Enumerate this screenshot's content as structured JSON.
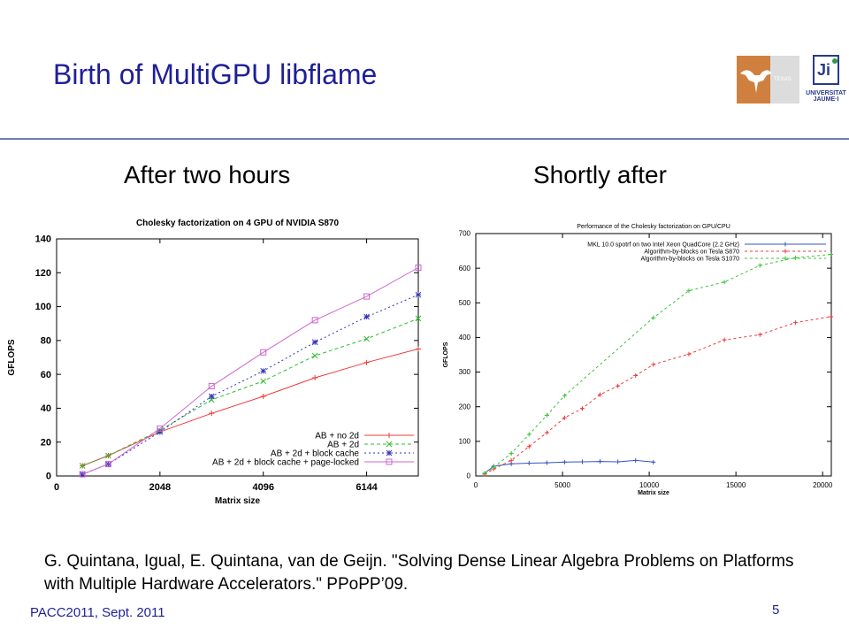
{
  "slide": {
    "title": "Birth of MultiGPU libflame",
    "left_heading": "After two hours",
    "right_heading": "Shortly after",
    "citation": "G. Quintana, Igual, E. Quintana, van de Geijn. \"Solving Dense Linear Algebra Problems on Platforms with Multiple Hardware Accelerators.\" PPoPP’09.",
    "footer": "PACC2011, Sept. 2011",
    "page_number": "5",
    "logos": {
      "left": "TEXAS",
      "right_line1": "UNIVERSITAT",
      "right_line2": "JAUME·I"
    }
  },
  "chart_data": [
    {
      "type": "line",
      "title": "Cholesky factorization on 4 GPU of NVIDIA S870",
      "xlabel": "Matrix size",
      "ylabel": "GFLOPS",
      "xlim": [
        0,
        7168
      ],
      "ylim": [
        0,
        140
      ],
      "xticks": [
        0,
        2048,
        4096,
        6144
      ],
      "yticks": [
        0,
        20,
        40,
        60,
        80,
        100,
        120,
        140
      ],
      "legend": "bottom-right",
      "series": [
        {
          "name": "AB + no 2d",
          "color": "#ee3b3b",
          "marker": "+",
          "dash": "",
          "x": [
            512,
            1024,
            2048,
            3072,
            4096,
            5120,
            6144,
            7168
          ],
          "y": [
            6,
            12,
            26,
            37,
            47,
            58,
            67,
            75
          ]
        },
        {
          "name": "AB + 2d",
          "color": "#2fbd2f",
          "marker": "x",
          "dash": "4,3",
          "x": [
            512,
            1024,
            2048,
            3072,
            4096,
            5120,
            6144,
            7168
          ],
          "y": [
            6,
            12,
            27,
            45,
            56,
            71,
            81,
            93
          ]
        },
        {
          "name": "AB + 2d + block cache",
          "color": "#3333bb",
          "marker": "*",
          "dash": "2,3",
          "x": [
            512,
            1024,
            2048,
            3072,
            4096,
            5120,
            6144,
            7168
          ],
          "y": [
            1,
            7,
            26,
            47,
            62,
            79,
            94,
            107
          ]
        },
        {
          "name": "AB + 2d + block cache + page-locked",
          "color": "#cc66cc",
          "marker": "square",
          "dash": "",
          "x": [
            512,
            1024,
            2048,
            3072,
            4096,
            5120,
            6144,
            7168
          ],
          "y": [
            1,
            7,
            28,
            53,
            73,
            92,
            106,
            123
          ]
        }
      ]
    },
    {
      "type": "line",
      "title": "Performance of the Cholesky factorization on GPU/CPU",
      "xlabel": "Matrix size",
      "ylabel": "GFLOPS",
      "xlim": [
        0,
        20500
      ],
      "ylim": [
        0,
        700
      ],
      "xticks": [
        0,
        5000,
        10000,
        15000,
        20000
      ],
      "yticks": [
        0,
        100,
        200,
        300,
        400,
        500,
        600,
        700
      ],
      "legend": "top-right",
      "series": [
        {
          "name": "MKL 10.0 spotrf on two Intel Xeon QuadCore (2.2 GHz)",
          "color": "#3355bb",
          "marker": "+",
          "dash": "",
          "x": [
            512,
            1024,
            2048,
            3072,
            4096,
            5120,
            6144,
            7168,
            8192,
            9216,
            10240
          ],
          "y": [
            8,
            28,
            35,
            37,
            38,
            40,
            41,
            42,
            41,
            45,
            40
          ]
        },
        {
          "name": "Algorithm-by-blocks on Tesla S870",
          "color": "#ee3b3b",
          "marker": "+",
          "dash": "3,3",
          "x": [
            512,
            1024,
            2048,
            3072,
            4096,
            5120,
            6144,
            7168,
            8192,
            9216,
            10240,
            12288,
            14336,
            16384,
            18432,
            20480
          ],
          "y": [
            5,
            20,
            45,
            85,
            125,
            168,
            195,
            235,
            260,
            290,
            322,
            352,
            393,
            408,
            443,
            460
          ]
        },
        {
          "name": "Algorithm-by-blocks on Tesla S1070",
          "color": "#3cc43c",
          "marker": "+",
          "dash": "3,3",
          "x": [
            512,
            1024,
            2048,
            3072,
            4096,
            5120,
            10240,
            12288,
            14336,
            16384,
            18432,
            20480
          ],
          "y": [
            8,
            25,
            65,
            120,
            175,
            232,
            457,
            535,
            560,
            608,
            630,
            640
          ]
        }
      ]
    }
  ]
}
